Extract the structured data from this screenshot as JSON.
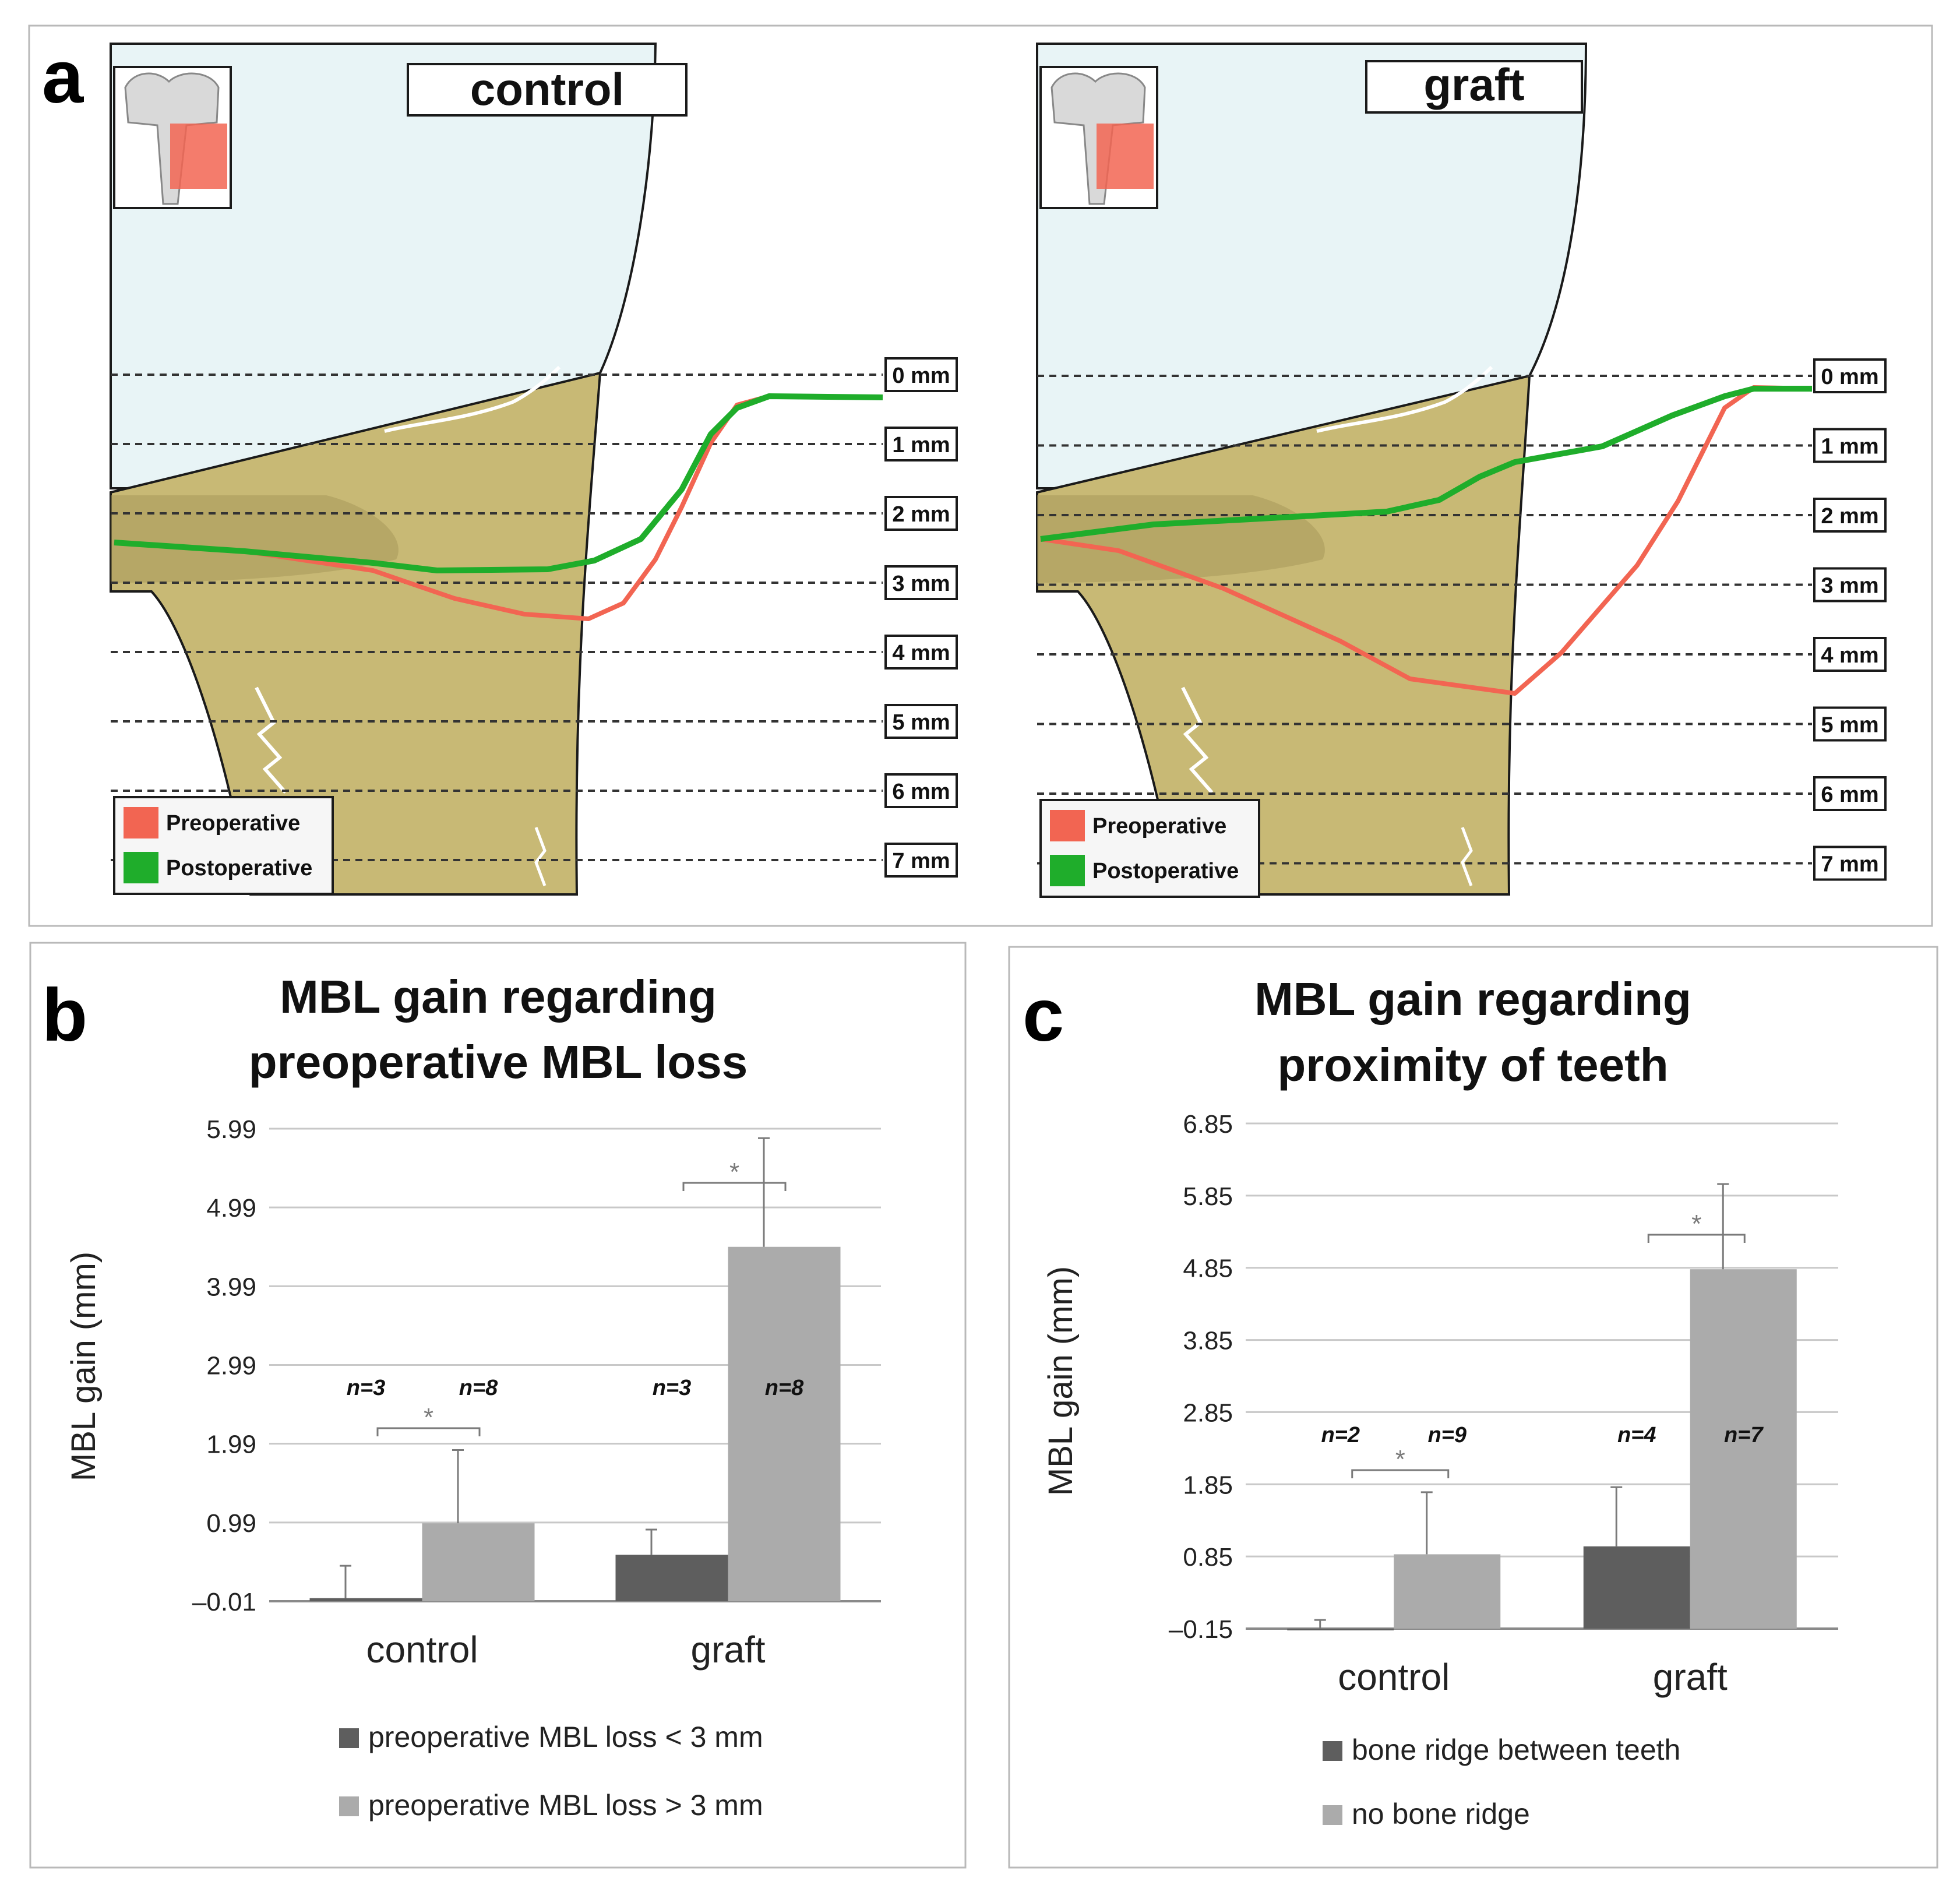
{
  "panel_a": {
    "letter": "a",
    "depth_labels": [
      "0 mm",
      "1 mm",
      "2 mm",
      "3 mm",
      "4 mm",
      "5 mm",
      "6 mm",
      "7 mm"
    ],
    "legend": {
      "pre": "Preoperative",
      "post": "Postoperative"
    },
    "colors": {
      "pre": "#f26552",
      "post": "#1fad2b",
      "bone": "#c8b975",
      "crown": "#e6f2f5"
    },
    "left": {
      "title": "control"
    },
    "right": {
      "title": "graft"
    }
  },
  "chart_data": [
    {
      "panel": "b",
      "type": "bar",
      "title": "MBL gain regarding preoperative MBL loss",
      "title_lines": [
        "MBL gain regarding",
        "preoperative MBL loss"
      ],
      "ylabel": "MBL gain (mm)",
      "yticks": [
        "5.99",
        "4.99",
        "3.99",
        "2.99",
        "1.99",
        "0.99",
        "–0.01"
      ],
      "ylim": [
        -0.01,
        5.99
      ],
      "categories": [
        "control",
        "graft"
      ],
      "series": [
        {
          "name": "preoperative MBL loss < 3 mm",
          "color": "#5e5e5e",
          "values": [
            0.03,
            0.58
          ],
          "errors": [
            0.41,
            0.32
          ],
          "n": [
            "n=3",
            "n=3"
          ]
        },
        {
          "name": "preoperative MBL loss > 3 mm",
          "color": "#ababab",
          "values": [
            0.98,
            4.49
          ],
          "errors": [
            0.93,
            1.38
          ],
          "n": [
            "n=8",
            "n=8"
          ]
        }
      ],
      "significance": [
        "*",
        "*"
      ]
    },
    {
      "panel": "c",
      "type": "bar",
      "title": "MBL gain regarding proximity of teeth",
      "title_lines": [
        "MBL gain regarding",
        "proximity of teeth"
      ],
      "ylabel": "MBL gain (mm)",
      "yticks": [
        "6.85",
        "5.85",
        "4.85",
        "3.85",
        "2.85",
        "1.85",
        "0.85",
        "–0.15"
      ],
      "ylim": [
        -0.15,
        6.85
      ],
      "categories": [
        "control",
        "graft"
      ],
      "series": [
        {
          "name": "bone ridge between teeth",
          "color": "#5e5e5e",
          "values": [
            -0.15,
            0.99
          ],
          "errors": [
            0.12,
            0.82
          ],
          "n": [
            "n=2",
            "n=4"
          ]
        },
        {
          "name": "no bone ridge",
          "color": "#ababab",
          "values": [
            0.88,
            4.83
          ],
          "errors": [
            0.86,
            1.18
          ],
          "n": [
            "n=9",
            "n=7"
          ]
        }
      ],
      "significance": [
        "*",
        "*"
      ]
    }
  ]
}
